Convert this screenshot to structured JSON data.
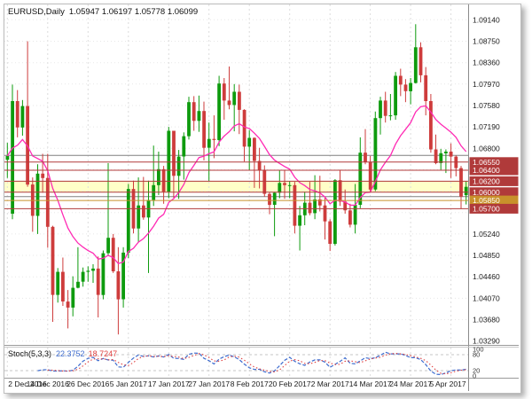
{
  "window": {
    "symbol_title": "EURUSD,Daily",
    "ohlc_title": "1.05947 1.06197 1.05778 1.06099"
  },
  "chart_data": {
    "type": "candlestick",
    "symbol": "EURUSD",
    "timeframe": "Daily",
    "title": "EURUSD,Daily 1.05947 1.06197 1.05778 1.06099",
    "current_ohlc": {
      "open": 1.05947,
      "high": 1.06197,
      "low": 1.05778,
      "close": 1.06099
    },
    "ylim": [
      1.0322,
      1.0942
    ],
    "grid": true,
    "y_ticks": [
      1.0329,
      1.0368,
      1.0407,
      1.0446,
      1.0485,
      1.0524,
      1.0563,
      1.0602,
      1.0641,
      1.068,
      1.0719,
      1.0758,
      1.0797,
      1.0836,
      1.0875,
      1.0914
    ],
    "y_ticks_hidden": [
      1.0563,
      1.0602,
      1.0641
    ],
    "x_axis_labels": [
      "2 Dec 2016",
      "14 Dec 2016",
      "26 Dec 2016",
      "5 Jan 2017",
      "17 Jan 2017",
      "27 Jan 2017",
      "8 Feb 2017",
      "20 Feb 2017",
      "2 Mar 2017",
      "14 Mar 2017",
      "24 Mar 2017",
      "5 Apr 2017"
    ],
    "x_label_indices": [
      0,
      8,
      16,
      24,
      32,
      40,
      48,
      56,
      64,
      72,
      80,
      88
    ],
    "candle_colors": {
      "bull": "#0E9B0E",
      "bear": "#CE3C3C"
    },
    "ma_line": {
      "name": "Moving Average",
      "color": "#FF2AB4",
      "period": 13,
      "method": "ema"
    },
    "highlight_band": {
      "from": 1.06,
      "to": 1.062,
      "color": "#FFFFC8"
    },
    "horizontal_lines": [
      {
        "price": 1.0655,
        "label": "1.06550",
        "color": "#B03A3A"
      },
      {
        "price": 1.064,
        "label": "1.06400",
        "color": "#B03A3A"
      },
      {
        "price": 1.062,
        "label": "1.06200",
        "color": "#B03A3A"
      },
      {
        "price": 1.06,
        "label": "1.06000",
        "color": "#B03A3A"
      },
      {
        "price": 1.0585,
        "label": "1.05850",
        "color": "#C8912B"
      },
      {
        "price": 1.057,
        "label": "1.05700",
        "color": "#B03A3A"
      }
    ],
    "extra_lines": [
      {
        "price": 1.0667,
        "color": "#808080"
      },
      {
        "price": 1.0592,
        "color": "#808080"
      }
    ],
    "stochastic": {
      "label": "Stoch(5,3,3)",
      "value_k": "22.3752",
      "value_d": "18.7247",
      "k_color": "#3E6CCF",
      "d_color": "#E04040",
      "levels": [
        20,
        80
      ],
      "scale_labels": [
        100,
        80,
        20,
        0
      ],
      "params": {
        "k_period": 5,
        "d_period": 3,
        "slowing": 3
      }
    },
    "bars": [
      [
        "2016.12.02",
        1.0659,
        1.069,
        1.0626,
        1.0666
      ],
      [
        "2016.12.05",
        1.0561,
        1.0796,
        1.0551,
        1.0766
      ],
      [
        "2016.12.06",
        1.0766,
        1.0786,
        1.07,
        1.0718
      ],
      [
        "2016.12.07",
        1.0718,
        1.0768,
        1.0703,
        1.0757
      ],
      [
        "2016.12.08",
        1.0757,
        1.0875,
        1.061,
        1.0614
      ],
      [
        "2016.12.09",
        1.0614,
        1.0627,
        1.0528,
        1.0557
      ],
      [
        "2016.12.12",
        1.0557,
        1.0651,
        1.0524,
        1.0634
      ],
      [
        "2016.12.13",
        1.0634,
        1.067,
        1.0599,
        1.0626
      ],
      [
        "2016.12.14",
        1.0626,
        1.067,
        1.0499,
        1.0537
      ],
      [
        "2016.12.15",
        1.0537,
        1.0539,
        1.0364,
        1.0413
      ],
      [
        "2016.12.16",
        1.0413,
        1.0462,
        1.0399,
        1.0455
      ],
      [
        "2016.12.19",
        1.0455,
        1.0481,
        1.0393,
        1.0401
      ],
      [
        "2016.12.20",
        1.0401,
        1.0422,
        1.0352,
        1.039
      ],
      [
        "2016.12.21",
        1.039,
        1.0447,
        1.0374,
        1.0426
      ],
      [
        "2016.12.22",
        1.0426,
        1.05,
        1.0425,
        1.0437
      ],
      [
        "2016.12.23",
        1.0437,
        1.0463,
        1.0428,
        1.0455
      ],
      [
        "2016.12.26",
        1.0455,
        1.0465,
        1.0437,
        1.0457
      ],
      [
        "2016.12.27",
        1.0457,
        1.0469,
        1.0435,
        1.0461
      ],
      [
        "2016.12.28",
        1.0461,
        1.0483,
        1.0372,
        1.0413
      ],
      [
        "2016.12.29",
        1.0413,
        1.0494,
        1.0405,
        1.0489
      ],
      [
        "2016.12.30",
        1.0489,
        1.0653,
        1.0484,
        1.0517
      ],
      [
        "2017.01.02",
        1.0517,
        1.0524,
        1.0453,
        1.0456
      ],
      [
        "2017.01.03",
        1.0456,
        1.05,
        1.0341,
        1.0405
      ],
      [
        "2017.01.04",
        1.0405,
        1.05,
        1.039,
        1.049
      ],
      [
        "2017.01.05",
        1.049,
        1.0615,
        1.048,
        1.0606
      ],
      [
        "2017.01.06",
        1.0606,
        1.0621,
        1.0525,
        1.0534
      ],
      [
        "2017.01.09",
        1.0534,
        1.0627,
        1.051,
        1.0576
      ],
      [
        "2017.01.10",
        1.0576,
        1.0628,
        1.055,
        1.0554
      ],
      [
        "2017.01.11",
        1.0554,
        1.0621,
        1.0453,
        1.0586
      ],
      [
        "2017.01.12",
        1.0586,
        1.0685,
        1.0575,
        1.0613
      ],
      [
        "2017.01.13",
        1.0613,
        1.0674,
        1.0595,
        1.0642
      ],
      [
        "2017.01.16",
        1.0642,
        1.0648,
        1.0579,
        1.0601
      ],
      [
        "2017.01.17",
        1.0601,
        1.0719,
        1.0589,
        1.0712
      ],
      [
        "2017.01.18",
        1.0712,
        1.0712,
        1.059,
        1.063
      ],
      [
        "2017.01.19",
        1.063,
        1.0677,
        1.0588,
        1.0665
      ],
      [
        "2017.01.20",
        1.0665,
        1.0709,
        1.0623,
        1.0702
      ],
      [
        "2017.01.23",
        1.0702,
        1.0774,
        1.0696,
        1.0764
      ],
      [
        "2017.01.24",
        1.0764,
        1.0775,
        1.0712,
        1.073
      ],
      [
        "2017.01.25",
        1.073,
        1.0776,
        1.071,
        1.0748
      ],
      [
        "2017.01.26",
        1.0748,
        1.0765,
        1.0658,
        1.0681
      ],
      [
        "2017.01.27",
        1.0681,
        1.0727,
        1.062,
        1.0697
      ],
      [
        "2017.01.30",
        1.0697,
        1.074,
        1.0662,
        1.0695
      ],
      [
        "2017.01.31",
        1.0695,
        1.0812,
        1.0684,
        1.0798
      ],
      [
        "2017.02.01",
        1.0798,
        1.0808,
        1.0732,
        1.0767
      ],
      [
        "2017.02.02",
        1.0767,
        1.0829,
        1.0751,
        1.0759
      ],
      [
        "2017.02.03",
        1.0759,
        1.0797,
        1.0711,
        1.0783
      ],
      [
        "2017.02.06",
        1.0783,
        1.0796,
        1.0706,
        1.075
      ],
      [
        "2017.02.07",
        1.075,
        1.0751,
        1.0656,
        1.0683
      ],
      [
        "2017.02.08",
        1.0683,
        1.0713,
        1.064,
        1.0699
      ],
      [
        "2017.02.09",
        1.0699,
        1.07,
        1.0608,
        1.0657
      ],
      [
        "2017.02.10",
        1.0657,
        1.0681,
        1.0607,
        1.064
      ],
      [
        "2017.02.13",
        1.064,
        1.0649,
        1.0592,
        1.0597
      ],
      [
        "2017.02.14",
        1.0597,
        1.06,
        1.056,
        1.0577
      ],
      [
        "2017.02.15",
        1.0577,
        1.06,
        1.052,
        1.0599
      ],
      [
        "2017.02.16",
        1.0599,
        1.064,
        1.0589,
        1.0617
      ],
      [
        "2017.02.17",
        1.0617,
        1.064,
        1.0588,
        1.0613
      ],
      [
        "2017.02.20",
        1.0613,
        1.062,
        1.0589,
        1.0613
      ],
      [
        "2017.02.21",
        1.0613,
        1.0619,
        1.0525,
        1.0539
      ],
      [
        "2017.02.22",
        1.0539,
        1.0575,
        1.0494,
        1.0558
      ],
      [
        "2017.02.23",
        1.0558,
        1.0601,
        1.054,
        1.0581
      ],
      [
        "2017.02.24",
        1.0581,
        1.0619,
        1.0558,
        1.0562
      ],
      [
        "2017.02.27",
        1.0562,
        1.0631,
        1.0551,
        1.0587
      ],
      [
        "2017.02.28",
        1.0587,
        1.063,
        1.0565,
        1.0576
      ],
      [
        "2017.03.01",
        1.0576,
        1.059,
        1.0514,
        1.0547
      ],
      [
        "2017.03.02",
        1.0547,
        1.0551,
        1.0493,
        1.0506
      ],
      [
        "2017.03.03",
        1.0506,
        1.0624,
        1.0503,
        1.0622
      ],
      [
        "2017.03.06",
        1.0622,
        1.0641,
        1.0575,
        1.0583
      ],
      [
        "2017.03.07",
        1.0583,
        1.0605,
        1.0561,
        1.0567
      ],
      [
        "2017.03.08",
        1.0567,
        1.0579,
        1.0536,
        1.0541
      ],
      [
        "2017.03.09",
        1.0541,
        1.0615,
        1.0525,
        1.0577
      ],
      [
        "2017.03.10",
        1.0577,
        1.07,
        1.0571,
        1.0672
      ],
      [
        "2017.03.13",
        1.0672,
        1.0715,
        1.0651,
        1.0655
      ],
      [
        "2017.03.14",
        1.0655,
        1.0666,
        1.06,
        1.0605
      ],
      [
        "2017.03.15",
        1.0605,
        1.0747,
        1.0602,
        1.0735
      ],
      [
        "2017.03.16",
        1.0735,
        1.0774,
        1.0705,
        1.0767
      ],
      [
        "2017.03.17",
        1.0767,
        1.0783,
        1.0727,
        1.0739
      ],
      [
        "2017.03.20",
        1.0739,
        1.0779,
        1.0731,
        1.074
      ],
      [
        "2017.03.21",
        1.074,
        1.0819,
        1.0732,
        1.0812
      ],
      [
        "2017.03.22",
        1.0812,
        1.0825,
        1.0775,
        1.0796
      ],
      [
        "2017.03.23",
        1.0796,
        1.0806,
        1.0764,
        1.0784
      ],
      [
        "2017.03.24",
        1.0784,
        1.0808,
        1.076,
        1.0799
      ],
      [
        "2017.03.27",
        1.0799,
        1.0906,
        1.0798,
        1.0864
      ],
      [
        "2017.03.28",
        1.0864,
        1.0873,
        1.08,
        1.0813
      ],
      [
        "2017.03.29",
        1.0813,
        1.0828,
        1.074,
        1.0766
      ],
      [
        "2017.03.30",
        1.0766,
        1.0779,
        1.0672,
        1.0678
      ],
      [
        "2017.03.31",
        1.0678,
        1.0705,
        1.0651,
        1.0653
      ],
      [
        "2017.04.03",
        1.0653,
        1.0679,
        1.0641,
        1.0671
      ],
      [
        "2017.04.04",
        1.0671,
        1.0678,
        1.0635,
        1.0674
      ],
      [
        "2017.04.05",
        1.0674,
        1.0689,
        1.0626,
        1.0665
      ],
      [
        "2017.04.06",
        1.0665,
        1.0667,
        1.0629,
        1.0644
      ],
      [
        "2017.04.07",
        1.0644,
        1.0648,
        1.057,
        1.0592
      ],
      [
        "2017.04.10",
        1.05947,
        1.06197,
        1.05778,
        1.06099
      ]
    ]
  }
}
